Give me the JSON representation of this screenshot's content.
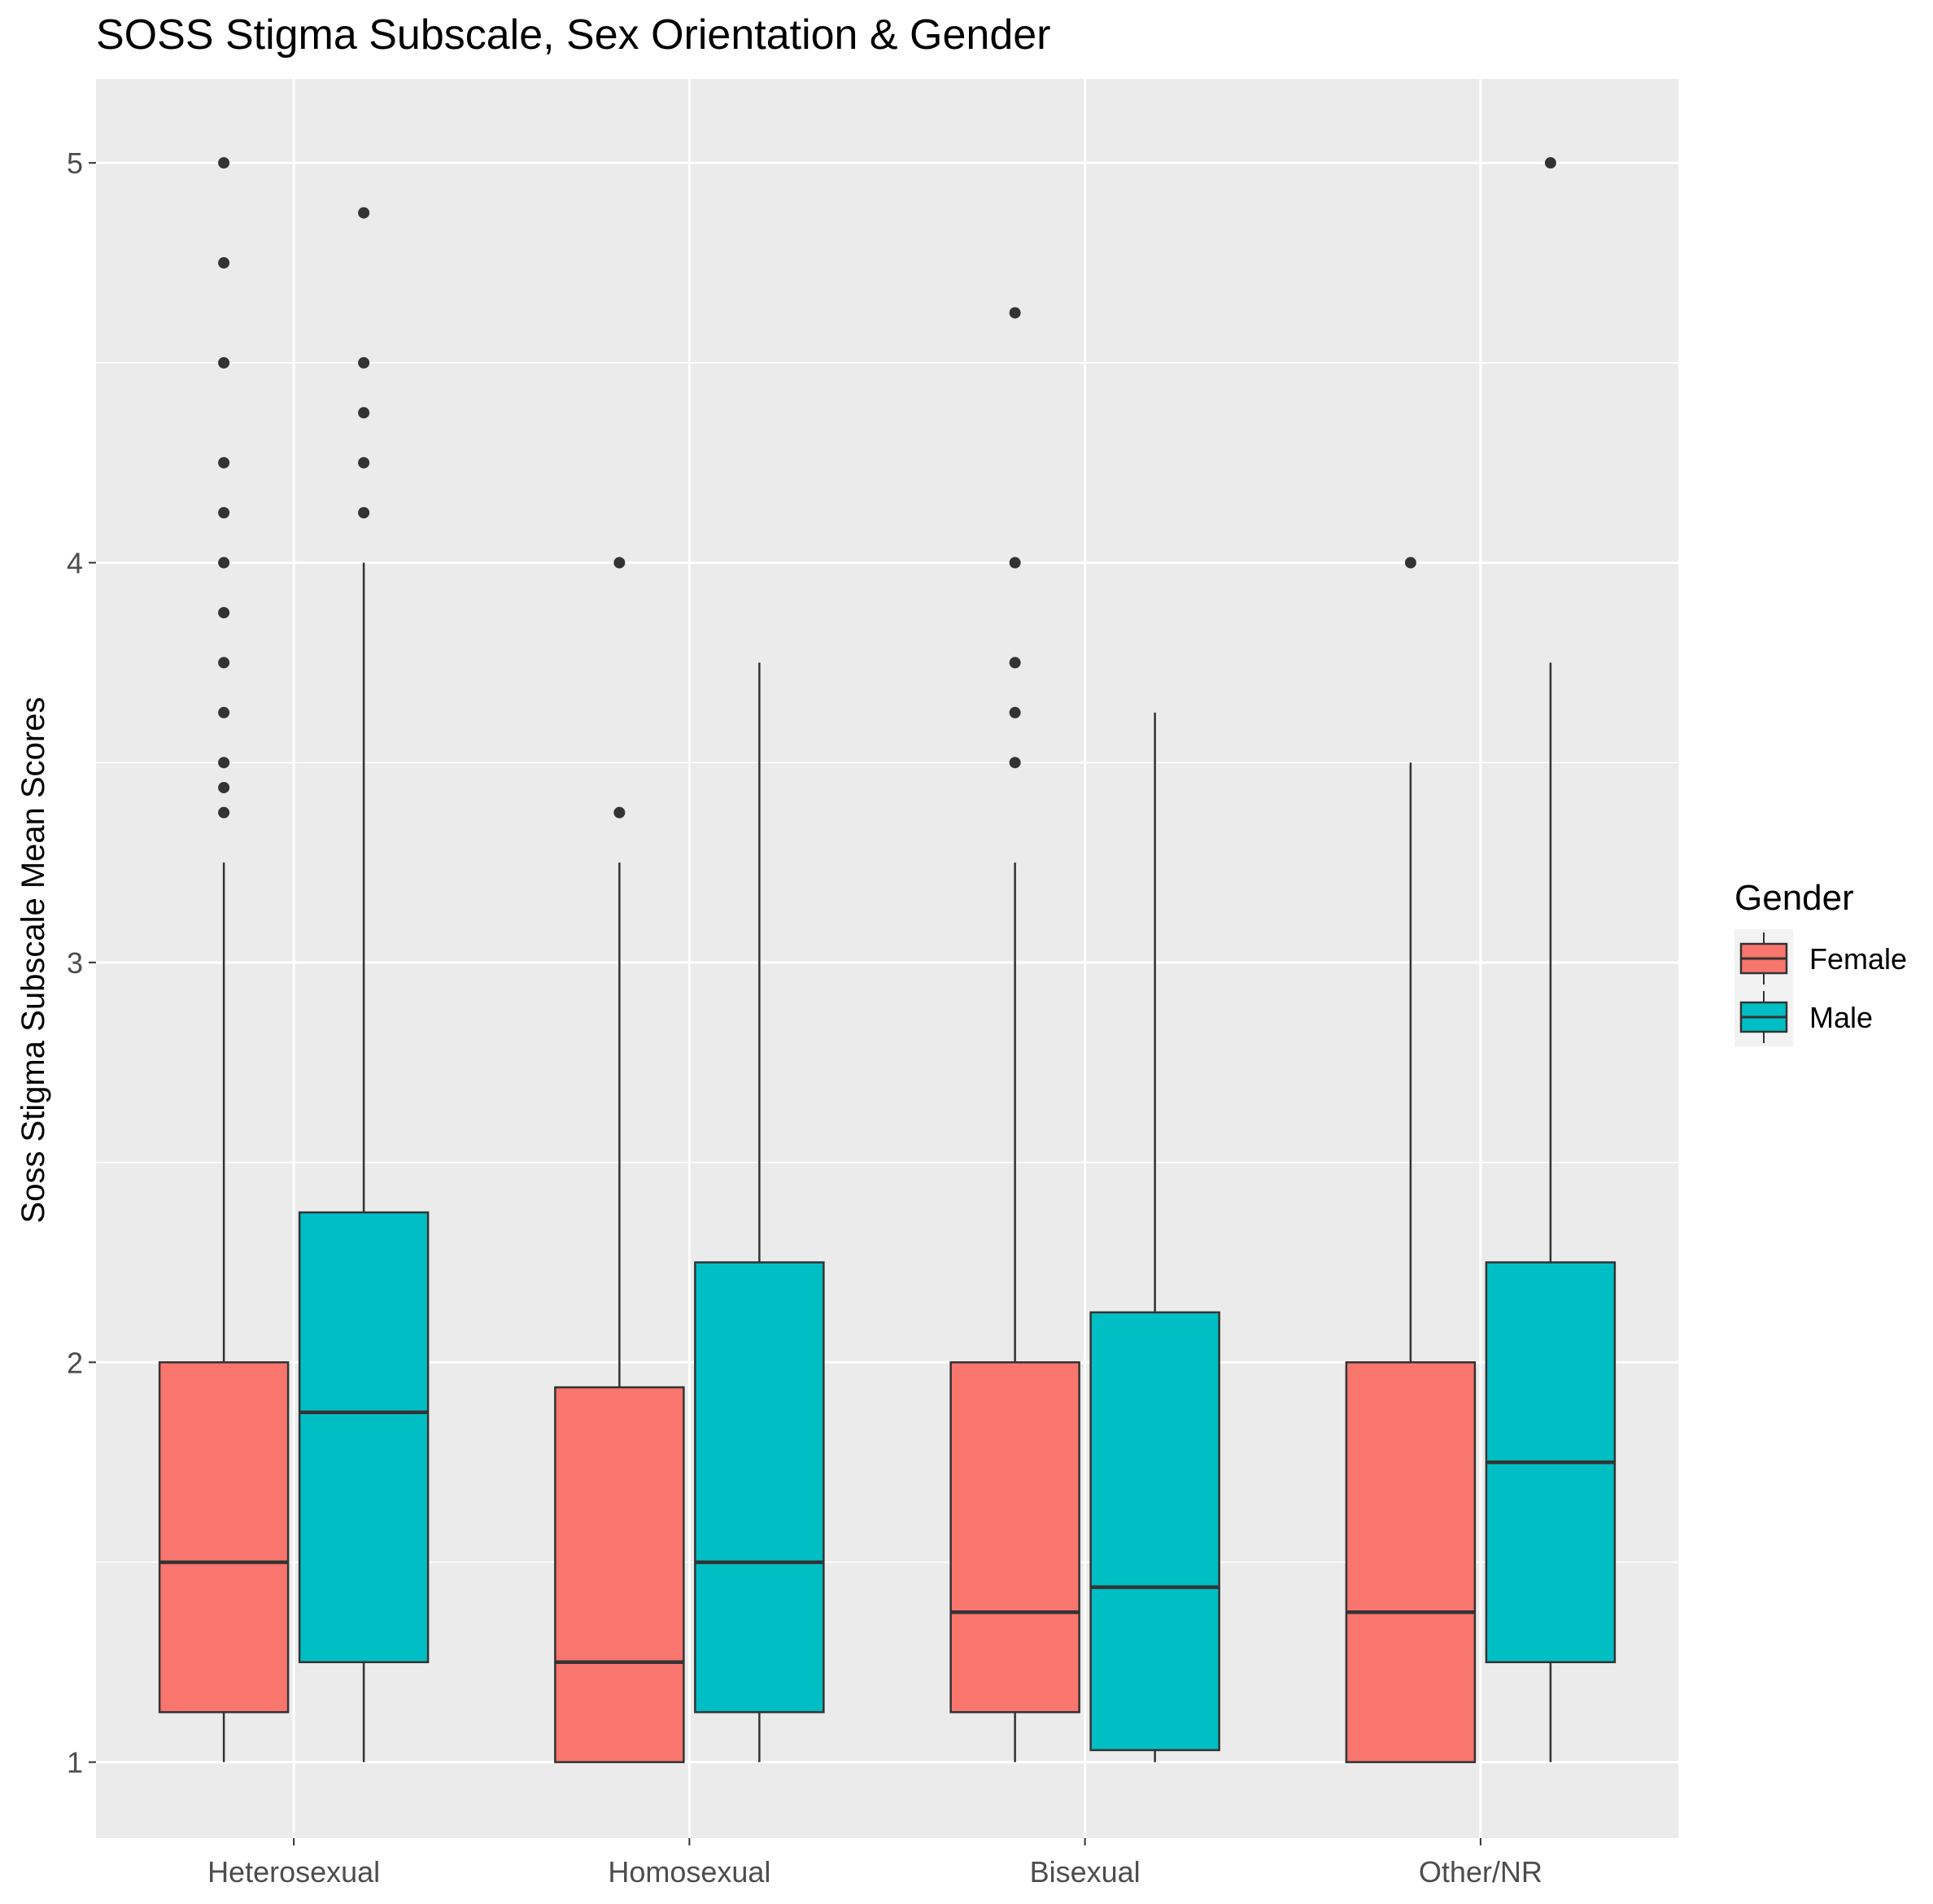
{
  "chart_data": {
    "type": "boxplot",
    "title": "SOSS Stigma Subscale, Sex Orientation & Gender",
    "xlabel": "",
    "ylabel": "Soss Stigma Subscale Mean Scores",
    "ylim": [
      0.81,
      5.21
    ],
    "yticks": [
      1,
      2,
      3,
      4,
      5
    ],
    "categories": [
      "Heterosexual",
      "Homosexual",
      "Bisexual",
      "Other/NR"
    ],
    "legend": {
      "title": "Gender",
      "position": "right",
      "entries": [
        {
          "label": "Female",
          "color": "#F8766D"
        },
        {
          "label": "Male",
          "color": "#00BFC4"
        }
      ]
    },
    "series": [
      {
        "name": "Female",
        "color": "#F8766D",
        "boxes": [
          {
            "category": "Heterosexual",
            "min": 1.0,
            "q1": 1.125,
            "median": 1.5,
            "q3": 2.0,
            "max": 3.25,
            "outliers": [
              3.375,
              3.4375,
              3.5,
              3.625,
              3.75,
              3.875,
              4.0,
              4.125,
              4.25,
              4.5,
              4.75,
              5.0
            ]
          },
          {
            "category": "Homosexual",
            "min": 1.0,
            "q1": 1.0,
            "median": 1.25,
            "q3": 1.9375,
            "max": 3.25,
            "outliers": [
              3.375,
              4.0
            ]
          },
          {
            "category": "Bisexual",
            "min": 1.0,
            "q1": 1.125,
            "median": 1.375,
            "q3": 2.0,
            "max": 3.25,
            "outliers": [
              3.5,
              3.625,
              3.75,
              4.0,
              4.625
            ]
          },
          {
            "category": "Other/NR",
            "min": 1.0,
            "q1": 1.0,
            "median": 1.375,
            "q3": 2.0,
            "max": 3.5,
            "outliers": [
              4.0
            ]
          }
        ]
      },
      {
        "name": "Male",
        "color": "#00BFC4",
        "boxes": [
          {
            "category": "Heterosexual",
            "min": 1.0,
            "q1": 1.25,
            "median": 1.875,
            "q3": 2.375,
            "max": 4.0,
            "outliers": [
              4.125,
              4.25,
              4.375,
              4.5,
              4.875
            ]
          },
          {
            "category": "Homosexual",
            "min": 1.0,
            "q1": 1.125,
            "median": 1.5,
            "q3": 2.25,
            "max": 3.75,
            "outliers": []
          },
          {
            "category": "Bisexual",
            "min": 1.0,
            "q1": 1.03,
            "median": 1.4375,
            "q3": 2.125,
            "max": 3.625,
            "outliers": []
          },
          {
            "category": "Other/NR",
            "min": 1.0,
            "q1": 1.25,
            "median": 1.75,
            "q3": 2.25,
            "max": 3.75,
            "outliers": [
              5.0
            ]
          }
        ]
      }
    ]
  }
}
